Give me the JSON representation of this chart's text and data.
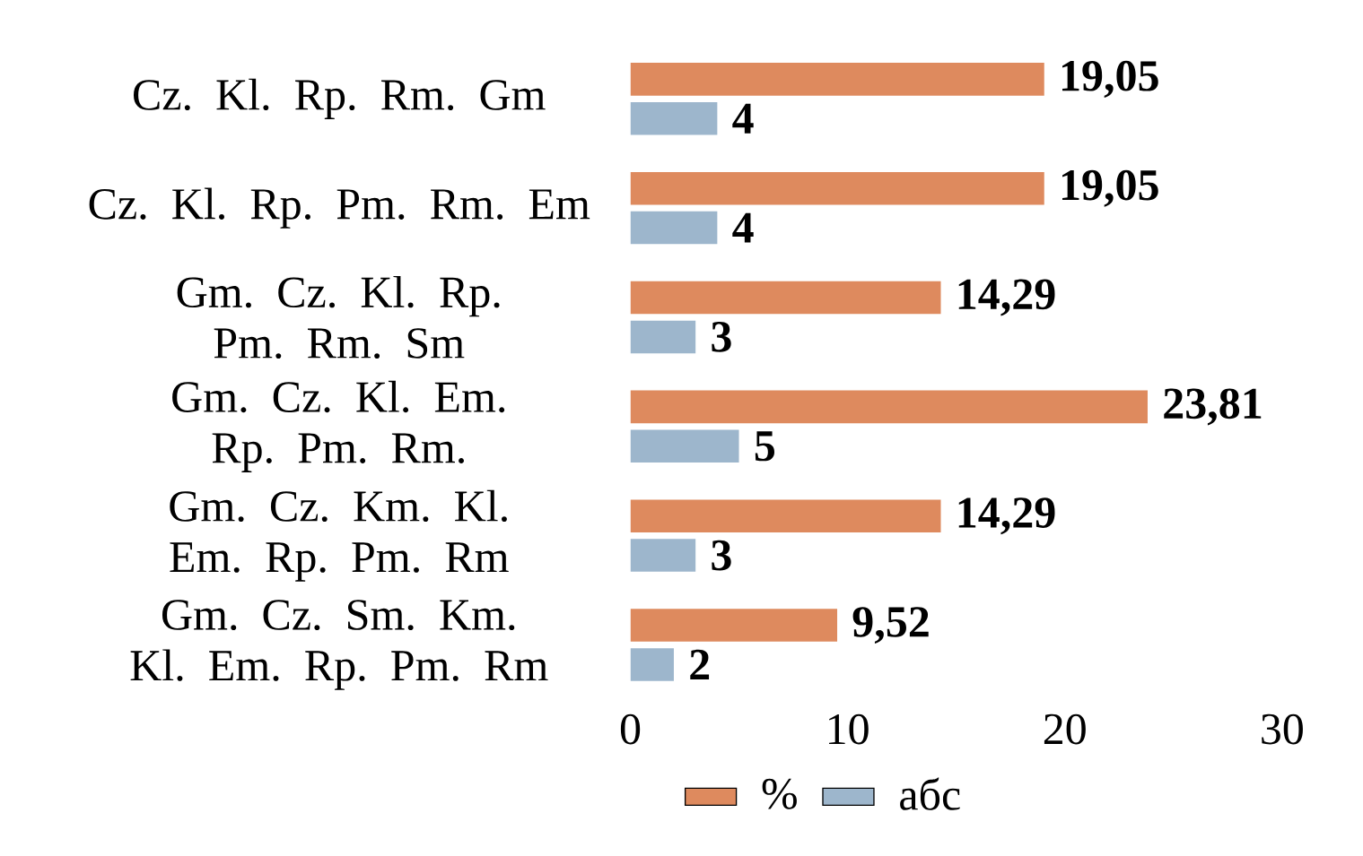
{
  "chart_data": {
    "type": "bar",
    "orientation": "horizontal",
    "categories": [
      "Cz. Kl. Rp. Rm. Gm",
      "Cz. Kl. Rp. Pm. Rm. Em",
      "Gm. Cz. Kl. Rp. Pm. Rm. Sm",
      "Gm. Cz. Kl. Em. Rp. Pm. Rm.",
      "Gm. Cz. Km. Kl. Em. Rp. Pm. Rm",
      "Gm. Cz. Sm. Km. Kl. Em. Rp. Pm. Rm"
    ],
    "series": [
      {
        "name": "%",
        "color": "#de8a5e",
        "values": [
          19.05,
          19.05,
          14.29,
          23.81,
          14.29,
          9.52
        ],
        "value_labels": [
          "19,05",
          "19,05",
          "14,29",
          "23,81",
          "14,29",
          "9,52"
        ]
      },
      {
        "name": "абс",
        "color": "#9db6cc",
        "values": [
          4,
          4,
          3,
          5,
          3,
          2
        ],
        "value_labels": [
          "4",
          "4",
          "3",
          "5",
          "3",
          "2"
        ]
      }
    ],
    "xlim": [
      0,
      30
    ],
    "xticks": [
      0,
      10,
      20,
      30
    ],
    "grid": false,
    "legend": "bottom"
  }
}
